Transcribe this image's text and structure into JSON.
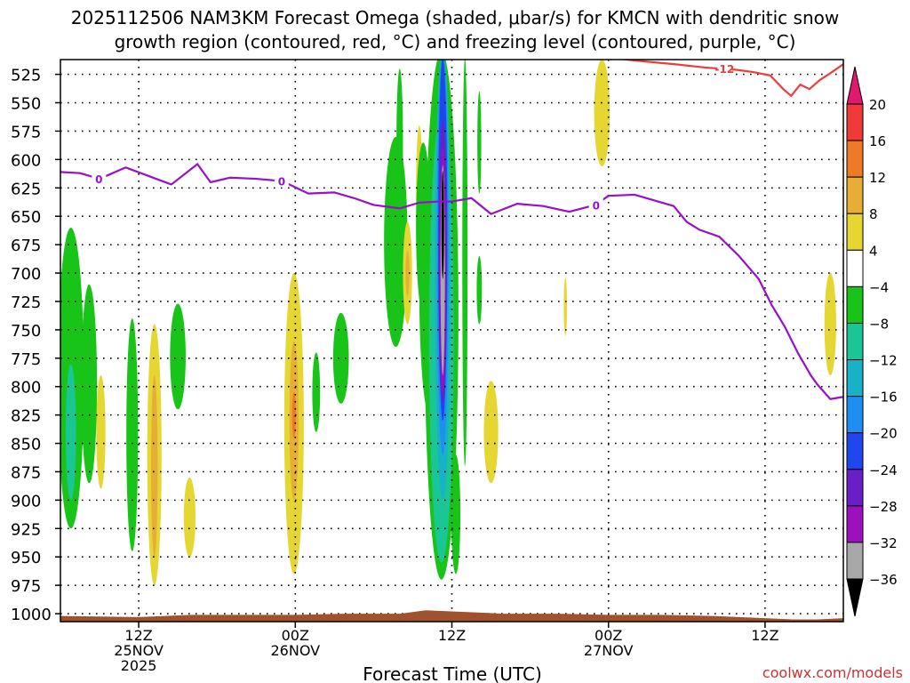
{
  "chart_data": {
    "type": "heatmap",
    "title_line1": "2025112506 NAM3KM Forecast Omega (shaded, μbar/s) for KMCN with dendritic snow",
    "title_line2": "growth region (contoured, red, °C) and freezing level (contoured, purple, °C)",
    "xlabel": "Forecast Time (UTC)",
    "credit": "coolwx.com/models",
    "y_axis": {
      "ticks": [
        525,
        550,
        575,
        600,
        625,
        650,
        675,
        700,
        725,
        750,
        775,
        800,
        825,
        850,
        875,
        900,
        925,
        950,
        975,
        1000
      ],
      "range": [
        1007,
        512
      ]
    },
    "x_axis": {
      "range_hours": [
        0,
        60
      ],
      "ticks": [
        {
          "hour": 6,
          "label": "12Z",
          "label2": "25NOV",
          "label3": "2025"
        },
        {
          "hour": 18,
          "label": "00Z",
          "label2": "26NOV",
          "label3": ""
        },
        {
          "hour": 30,
          "label": "12Z",
          "label2": "",
          "label3": ""
        },
        {
          "hour": 42,
          "label": "00Z",
          "label2": "27NOV",
          "label3": ""
        },
        {
          "hour": 54,
          "label": "12Z",
          "label2": "",
          "label3": ""
        }
      ]
    },
    "colorbar": {
      "labels": [
        "20",
        "16",
        "12",
        "8",
        "4",
        "−4",
        "−8",
        "−12",
        "−16",
        "−20",
        "−24",
        "−28",
        "−32",
        "−36"
      ],
      "bounds": [
        20,
        16,
        12,
        8,
        4,
        -4,
        -8,
        -12,
        -16,
        -20,
        -24,
        -28,
        -32,
        -36
      ],
      "bins": [
        {
          "range": [
            20,
            24
          ],
          "color": "#e0186e"
        },
        {
          "range": [
            16,
            20
          ],
          "color": "#f03a3a"
        },
        {
          "range": [
            12,
            16
          ],
          "color": "#ee7a28"
        },
        {
          "range": [
            8,
            12
          ],
          "color": "#e6ae35"
        },
        {
          "range": [
            4,
            8
          ],
          "color": "#e6d632"
        },
        {
          "range": [
            -4,
            4
          ],
          "color": "#ffffff"
        },
        {
          "range": [
            -8,
            -4
          ],
          "color": "#18c418"
        },
        {
          "range": [
            -12,
            -8
          ],
          "color": "#19c694"
        },
        {
          "range": [
            -16,
            -12
          ],
          "color": "#18b2c8"
        },
        {
          "range": [
            -20,
            -16
          ],
          "color": "#1e8ef0"
        },
        {
          "range": [
            -24,
            -20
          ],
          "color": "#1e48ee"
        },
        {
          "range": [
            -28,
            -24
          ],
          "color": "#6a1ec8"
        },
        {
          "range": [
            -32,
            -28
          ],
          "color": "#9e10be"
        },
        {
          "range": [
            -36,
            -32
          ],
          "color": "#a8a8a8"
        },
        {
          "range": [
            -40,
            -36
          ],
          "color": "#000000"
        }
      ]
    },
    "omega_features": [
      {
        "hour": 0.8,
        "p_top": 660,
        "p_bot": 925,
        "hw": 1.0,
        "value": -5
      },
      {
        "hour": 0.8,
        "p_top": 780,
        "p_bot": 900,
        "hw": 0.4,
        "value": -9
      },
      {
        "hour": 2.2,
        "p_top": 710,
        "p_bot": 885,
        "hw": 0.6,
        "value": -6
      },
      {
        "hour": 3.1,
        "p_top": 790,
        "p_bot": 890,
        "hw": 0.35,
        "value": 5
      },
      {
        "hour": 5.5,
        "p_top": 740,
        "p_bot": 945,
        "hw": 0.45,
        "value": -5
      },
      {
        "hour": 7.2,
        "p_top": 745,
        "p_bot": 975,
        "hw": 0.55,
        "value": 5
      },
      {
        "hour": 7.2,
        "p_top": 790,
        "p_bot": 950,
        "hw": 0.25,
        "value": 9
      },
      {
        "hour": 9.0,
        "p_top": 727,
        "p_bot": 820,
        "hw": 0.6,
        "value": -5
      },
      {
        "hour": 9.9,
        "p_top": 880,
        "p_bot": 950,
        "hw": 0.45,
        "value": 5
      },
      {
        "hour": 17.9,
        "p_top": 700,
        "p_bot": 965,
        "hw": 0.75,
        "value": 5
      },
      {
        "hour": 17.9,
        "p_top": 760,
        "p_bot": 900,
        "hw": 0.35,
        "value": 10
      },
      {
        "hour": 17.9,
        "p_top": 805,
        "p_bot": 845,
        "hw": 0.15,
        "value": 14
      },
      {
        "hour": 19.6,
        "p_top": 770,
        "p_bot": 840,
        "hw": 0.3,
        "value": -5
      },
      {
        "hour": 21.5,
        "p_top": 735,
        "p_bot": 815,
        "hw": 0.6,
        "value": -6
      },
      {
        "hour": 25.7,
        "p_top": 580,
        "p_bot": 765,
        "hw": 0.9,
        "value": -5
      },
      {
        "hour": 26.0,
        "p_top": 520,
        "p_bot": 655,
        "hw": 0.25,
        "value": -5
      },
      {
        "hour": 26.6,
        "p_top": 655,
        "p_bot": 745,
        "hw": 0.35,
        "value": 5
      },
      {
        "hour": 26.6,
        "p_top": 680,
        "p_bot": 720,
        "hw": 0.15,
        "value": 9
      },
      {
        "hour": 27.5,
        "p_top": 570,
        "p_bot": 690,
        "hw": 0.25,
        "value": 5
      },
      {
        "hour": 27.8,
        "p_top": 585,
        "p_bot": 735,
        "hw": 0.55,
        "value": -5
      },
      {
        "hour": 28.3,
        "p_top": 600,
        "p_bot": 825,
        "hw": 0.8,
        "value": -5
      },
      {
        "hour": 29.2,
        "p_top": 505,
        "p_bot": 970,
        "hw": 1.3,
        "value": -6
      },
      {
        "hour": 29.2,
        "p_top": 560,
        "p_bot": 955,
        "hw": 0.95,
        "value": -10
      },
      {
        "hour": 29.3,
        "p_top": 505,
        "p_bot": 900,
        "hw": 0.6,
        "value": -14
      },
      {
        "hour": 29.3,
        "p_top": 505,
        "p_bot": 860,
        "hw": 0.45,
        "value": -18
      },
      {
        "hour": 29.3,
        "p_top": 510,
        "p_bot": 830,
        "hw": 0.35,
        "value": -22
      },
      {
        "hour": 29.3,
        "p_top": 565,
        "p_bot": 815,
        "hw": 0.3,
        "value": -27
      },
      {
        "hour": 29.3,
        "p_top": 590,
        "p_bot": 805,
        "hw": 0.22,
        "value": -31
      },
      {
        "hour": 29.3,
        "p_top": 605,
        "p_bot": 790,
        "hw": 0.17,
        "value": -34
      },
      {
        "hour": 29.3,
        "p_top": 610,
        "p_bot": 705,
        "hw": 0.1,
        "value": -38
      },
      {
        "hour": 30.3,
        "p_top": 860,
        "p_bot": 965,
        "hw": 0.35,
        "value": -5
      },
      {
        "hour": 31.0,
        "p_top": 510,
        "p_bot": 870,
        "hw": 0.2,
        "value": -5
      },
      {
        "hour": 32.1,
        "p_top": 540,
        "p_bot": 630,
        "hw": 0.15,
        "value": -5
      },
      {
        "hour": 32.1,
        "p_top": 685,
        "p_bot": 745,
        "hw": 0.2,
        "value": -5
      },
      {
        "hour": 33.0,
        "p_top": 795,
        "p_bot": 885,
        "hw": 0.55,
        "value": 5
      },
      {
        "hour": 38.7,
        "p_top": 704,
        "p_bot": 755,
        "hw": 0.12,
        "value": 5
      },
      {
        "hour": 41.5,
        "p_top": 512,
        "p_bot": 606,
        "hw": 0.6,
        "value": 5
      },
      {
        "hour": 59.0,
        "p_top": 700,
        "p_bot": 790,
        "hw": 0.45,
        "value": 5
      }
    ],
    "dendritic_contour": {
      "label": "-12",
      "hours": [
        39.4,
        41.8,
        44.2,
        47.0,
        49.4,
        51.8,
        53.1,
        54.4,
        55.4,
        56.0,
        56.7,
        57.4,
        58.2,
        59.0,
        60.0
      ],
      "pressures": [
        510,
        510,
        513,
        516,
        519,
        521,
        523,
        526,
        538,
        544,
        534,
        538,
        530,
        524,
        516
      ]
    },
    "freezing_level_contour": {
      "label": "0",
      "hours": [
        0,
        1.5,
        3.0,
        5.0,
        8.5,
        10.5,
        11.5,
        13.0,
        15.0,
        17.0,
        19.0,
        21.0,
        22.5,
        24.0,
        26.0,
        27.5,
        29.0,
        30.0,
        31.5,
        33.0,
        35.0,
        37.0,
        39.0,
        41.0,
        42.0,
        44.0,
        47.0,
        48.0,
        49.0,
        50.5,
        52.0,
        53.5,
        54.5,
        55.5,
        56.5,
        57.5,
        58.0,
        59.0,
        60.0
      ],
      "pressures": [
        611,
        612,
        617,
        607,
        622,
        604,
        620,
        616,
        617,
        619,
        630,
        629,
        634,
        640,
        643,
        638,
        637,
        637,
        634,
        648,
        639,
        641,
        646,
        640,
        632,
        631,
        641,
        655,
        662,
        668,
        685,
        705,
        728,
        747,
        770,
        790,
        798,
        811,
        809
      ]
    },
    "terrain": {
      "color": "#a0522d",
      "hours": [
        0,
        6,
        10,
        14,
        18,
        22,
        26,
        28,
        30,
        32,
        34,
        38,
        42,
        46,
        50,
        54,
        56,
        58,
        60
      ],
      "pressures": [
        1002,
        1003,
        1001,
        1001,
        1001,
        1000,
        1000,
        997,
        998,
        999,
        1000,
        1000,
        1001,
        1001,
        1002,
        1004,
        1005,
        1005,
        1004
      ]
    }
  }
}
